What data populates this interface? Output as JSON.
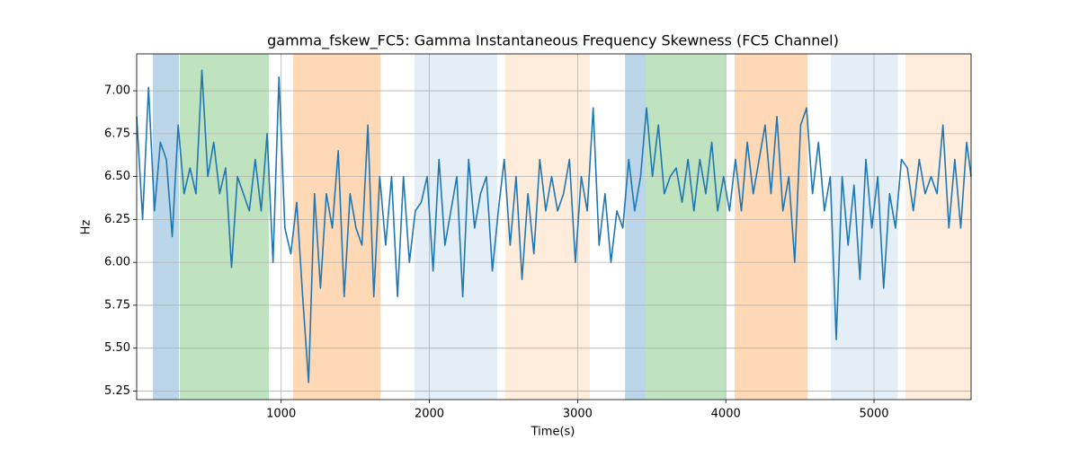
{
  "chart_data": {
    "type": "line",
    "title": "gamma_fskew_FC5: Gamma Instantaneous Frequency Skewness (FC5 Channel)",
    "xlabel": "Time(s)",
    "ylabel": "Hz",
    "xlim": [
      25,
      5655
    ],
    "ylim": [
      5.2,
      7.215
    ],
    "xticks": [
      1000,
      2000,
      3000,
      4000,
      5000
    ],
    "yticks": [
      5.25,
      {
        "value": 5.5,
        "label": "5.50"
      },
      5.75,
      {
        "value": 6,
        "label": "6.00"
      },
      6.25,
      {
        "value": 6.5,
        "label": "6.50"
      },
      6.75,
      {
        "value": 7,
        "label": "7.00"
      }
    ],
    "grid": true,
    "spans": [
      {
        "start": 134,
        "end": 310,
        "color": "#1f77b4",
        "alpha": 0.3
      },
      {
        "start": 316,
        "end": 917,
        "color": "#2ca02c",
        "alpha": 0.3
      },
      {
        "start": 1081,
        "end": 1670,
        "color": "#ff7f0e",
        "alpha": 0.3
      },
      {
        "start": 1900,
        "end": 2458,
        "color": "#1f77b4",
        "alpha": 0.12
      },
      {
        "start": 2513,
        "end": 3083,
        "color": "#ff7f0e",
        "alpha": 0.15
      },
      {
        "start": 3320,
        "end": 3460,
        "color": "#1f77b4",
        "alpha": 0.3
      },
      {
        "start": 3460,
        "end": 4000,
        "color": "#2ca02c",
        "alpha": 0.3
      },
      {
        "start": 4060,
        "end": 4552,
        "color": "#ff7f0e",
        "alpha": 0.3
      },
      {
        "start": 4710,
        "end": 5160,
        "color": "#1f77b4",
        "alpha": 0.12
      },
      {
        "start": 5213,
        "end": 5655,
        "color": "#ff7f0e",
        "alpha": 0.15
      }
    ],
    "x": [
      25,
      65,
      105,
      145,
      185,
      225,
      265,
      305,
      345,
      385,
      425,
      465,
      505,
      545,
      585,
      625,
      665,
      705,
      745,
      785,
      825,
      865,
      905,
      945,
      985,
      1025,
      1065,
      1105,
      1145,
      1185,
      1225,
      1265,
      1305,
      1345,
      1385,
      1425,
      1465,
      1505,
      1545,
      1585,
      1625,
      1665,
      1705,
      1745,
      1785,
      1825,
      1865,
      1905,
      1945,
      1985,
      2025,
      2065,
      2105,
      2145,
      2185,
      2225,
      2265,
      2305,
      2345,
      2385,
      2425,
      2465,
      2505,
      2545,
      2585,
      2625,
      2665,
      2705,
      2745,
      2785,
      2825,
      2865,
      2905,
      2945,
      2985,
      3025,
      3065,
      3105,
      3145,
      3185,
      3225,
      3265,
      3305,
      3345,
      3385,
      3425,
      3465,
      3505,
      3545,
      3585,
      3625,
      3665,
      3705,
      3745,
      3785,
      3825,
      3865,
      3905,
      3945,
      3985,
      4025,
      4065,
      4105,
      4145,
      4185,
      4225,
      4265,
      4305,
      4345,
      4385,
      4425,
      4465,
      4505,
      4545,
      4585,
      4625,
      4665,
      4705,
      4745,
      4785,
      4825,
      4865,
      4905,
      4945,
      4985,
      5025,
      5065,
      5105,
      5145,
      5185,
      5225,
      5265,
      5305,
      5345,
      5385,
      5425,
      5465,
      5505,
      5545,
      5585,
      5625,
      5655
    ],
    "series": [
      {
        "color": "#1f77b4",
        "values": [
          6.85,
          6.25,
          7.02,
          6.3,
          6.7,
          6.6,
          6.15,
          6.8,
          6.4,
          6.55,
          6.4,
          7.12,
          6.5,
          6.7,
          6.4,
          6.55,
          5.97,
          6.5,
          6.4,
          6.3,
          6.6,
          6.3,
          6.75,
          6.0,
          7.08,
          6.2,
          6.05,
          6.35,
          5.8,
          5.3,
          6.4,
          5.85,
          6.4,
          6.2,
          6.65,
          5.8,
          6.4,
          6.2,
          6.1,
          6.8,
          5.8,
          6.5,
          6.1,
          6.5,
          5.8,
          6.5,
          6.0,
          6.3,
          6.35,
          6.5,
          5.95,
          6.6,
          6.1,
          6.3,
          6.5,
          5.8,
          6.6,
          6.2,
          6.4,
          6.5,
          5.95,
          6.3,
          6.6,
          6.1,
          6.5,
          5.9,
          6.4,
          6.05,
          6.6,
          6.3,
          6.5,
          6.3,
          6.4,
          6.6,
          6.0,
          6.5,
          6.3,
          6.9,
          6.1,
          6.4,
          6.0,
          6.3,
          6.2,
          6.6,
          6.3,
          6.5,
          6.9,
          6.5,
          6.8,
          6.4,
          6.5,
          6.55,
          6.35,
          6.6,
          6.3,
          6.6,
          6.4,
          6.7,
          6.3,
          6.5,
          6.3,
          6.6,
          6.3,
          6.7,
          6.4,
          6.6,
          6.8,
          6.4,
          6.85,
          6.3,
          6.5,
          6.0,
          6.8,
          6.9,
          6.4,
          6.7,
          6.3,
          6.5,
          5.55,
          6.5,
          6.1,
          6.45,
          5.9,
          6.6,
          6.2,
          6.5,
          5.85,
          6.4,
          6.2,
          6.6,
          6.55,
          6.3,
          6.6,
          6.4,
          6.5,
          6.4,
          6.8,
          6.2,
          6.6,
          6.2,
          6.7,
          6.5
        ]
      }
    ]
  }
}
